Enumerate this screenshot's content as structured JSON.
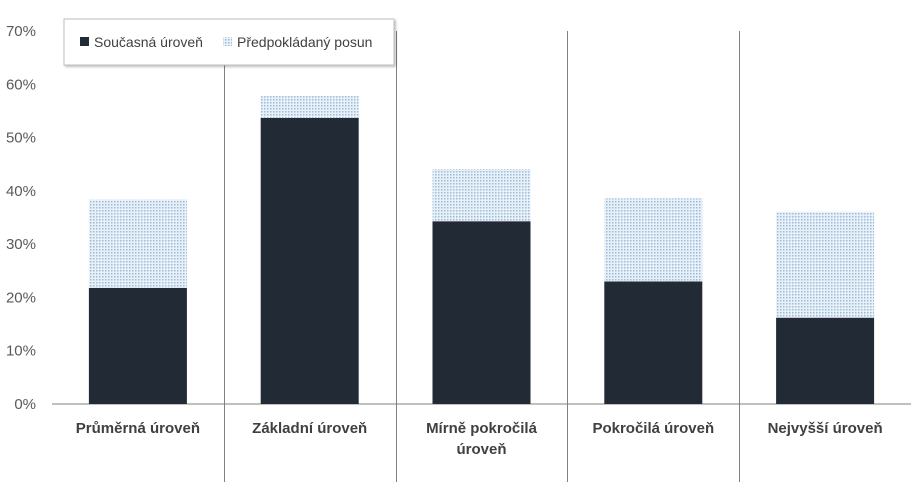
{
  "chart_data": {
    "type": "bar",
    "stacked": true,
    "categories": [
      [
        "Průměrná úroveň"
      ],
      [
        "Základní úroveň"
      ],
      [
        "Mírně pokročilá",
        "úroveň"
      ],
      [
        "Pokročilá úroveň"
      ],
      [
        "Nejvyšší úroveň"
      ]
    ],
    "series": [
      {
        "name": "Současná úroveň",
        "values": [
          21.8,
          53.7,
          34.3,
          23.0,
          16.2
        ],
        "color": "#222a35",
        "pattern": "solid"
      },
      {
        "name": "Předpokládaný posun",
        "values": [
          16.6,
          4.1,
          9.8,
          15.6,
          19.9
        ],
        "color": "#bdd7ee",
        "pattern": "dotted"
      }
    ],
    "yticks": [
      "0%",
      "10%",
      "20%",
      "30%",
      "40%",
      "50%",
      "60%",
      "70%"
    ],
    "ylim": [
      0,
      70
    ],
    "grid": false,
    "legend_position": "top-left",
    "category_separators": true
  }
}
